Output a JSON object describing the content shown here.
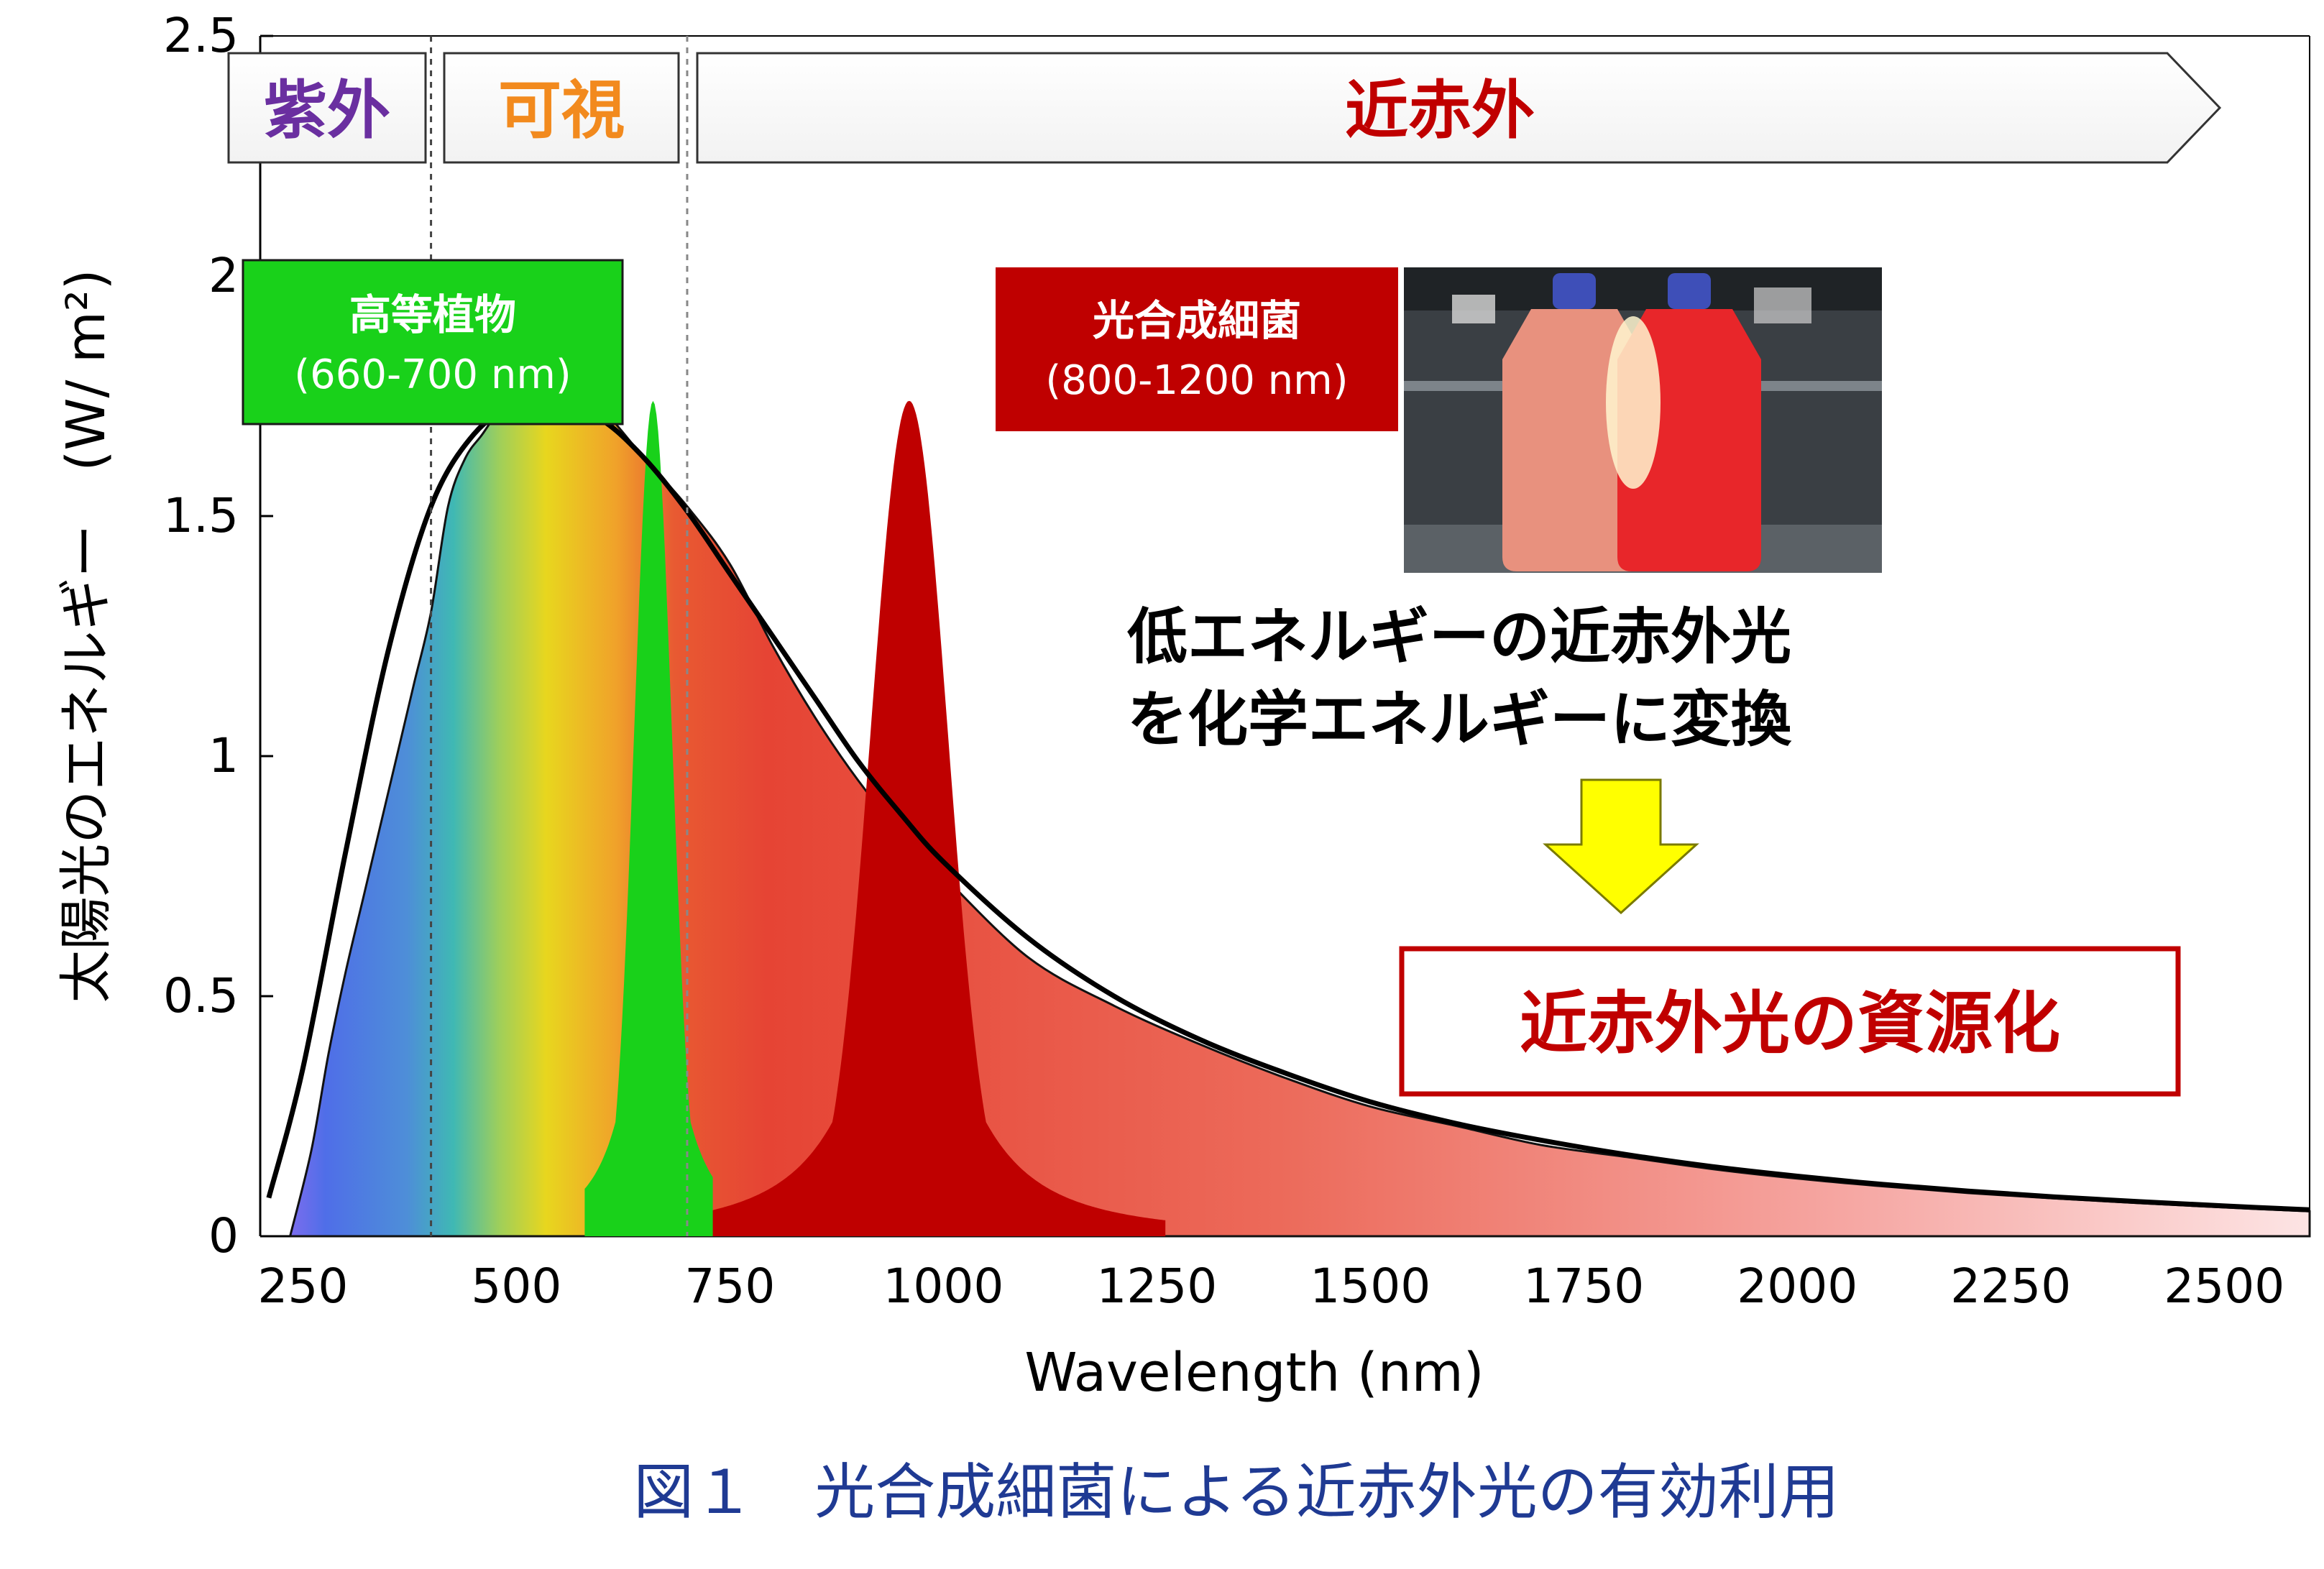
{
  "chart_data": {
    "type": "area",
    "xlabel": "Wavelength (nm)",
    "ylabel": "太陽光のエネルギー　(W/ m²)",
    "xlim": [
      200,
      2600
    ],
    "ylim": [
      0,
      2.5
    ],
    "x_ticks": [
      "250",
      "500",
      "750",
      "1000",
      "1250",
      "1500",
      "1750",
      "2000",
      "2250",
      "2500"
    ],
    "x_tick_values": [
      250,
      500,
      750,
      1000,
      1250,
      1500,
      1750,
      2000,
      2250,
      2500
    ],
    "y_ticks": [
      "0",
      "0.5",
      "1",
      "1.5",
      "2",
      "2.5"
    ],
    "y_tick_values": [
      0,
      0.5,
      1,
      1.5,
      2,
      2.5
    ],
    "series": [
      {
        "kind": "envelope",
        "x": [
          210,
          250,
          300,
          350,
          400,
          450,
          500,
          550,
          600,
          650,
          700,
          750,
          800,
          850,
          900,
          950,
          1000,
          1100,
          1200,
          1300,
          1400,
          1500,
          1600,
          1700,
          1800,
          1900,
          2000,
          2100,
          2200,
          2300,
          2400,
          2500,
          2600
        ],
        "y": [
          0.08,
          0.35,
          0.8,
          1.22,
          1.52,
          1.67,
          1.73,
          1.73,
          1.7,
          1.62,
          1.51,
          1.38,
          1.25,
          1.12,
          0.99,
          0.88,
          0.78,
          0.62,
          0.5,
          0.41,
          0.34,
          0.28,
          0.235,
          0.2,
          0.17,
          0.145,
          0.125,
          0.108,
          0.094,
          0.082,
          0.072,
          0.063,
          0.055
        ]
      },
      {
        "kind": "solar-spectrum-fill",
        "x": [
          235,
          260,
          280,
          300,
          320,
          340,
          360,
          380,
          400,
          420,
          440,
          460,
          480,
          500,
          550,
          600,
          650,
          700,
          750,
          800,
          850,
          900,
          950,
          1000,
          1100,
          1200,
          1300,
          1400,
          1500,
          1600,
          1700,
          1800,
          1900,
          2000,
          2100,
          2200,
          2300,
          2400,
          2500,
          2600
        ],
        "y": [
          0.0,
          0.18,
          0.38,
          0.55,
          0.7,
          0.85,
          1.0,
          1.15,
          1.3,
          1.52,
          1.62,
          1.67,
          1.72,
          1.75,
          1.76,
          1.72,
          1.62,
          1.52,
          1.4,
          1.23,
          1.08,
          0.95,
          0.84,
          0.75,
          0.58,
          0.48,
          0.4,
          0.33,
          0.27,
          0.23,
          0.19,
          0.165,
          0.14,
          0.12,
          0.104,
          0.09,
          0.079,
          0.069,
          0.06,
          0.052
        ]
      },
      {
        "kind": "higher-plants-absorption",
        "peak_x": 660,
        "peak_y": 1.74,
        "sigma_nm": 22
      },
      {
        "kind": "photosynthetic-bacteria-absorption",
        "peak_x": 960,
        "peak_y": 1.74,
        "sigma_nm": 45
      }
    ],
    "region_boundaries": [
      400,
      700
    ],
    "regions": [
      {
        "label": "紫外",
        "color": "#6a2fa0"
      },
      {
        "label": "可視",
        "color": "#f28a1e"
      },
      {
        "label": "近赤外",
        "color": "#c00000"
      }
    ],
    "annotations": {
      "plants_box_title": "高等植物",
      "plants_box_range": "(660-700 nm)",
      "bacteria_box_title": "光合成細菌",
      "bacteria_box_range": "(800-1200 nm)",
      "conversion_line1": "低エネルギーの近赤外光",
      "conversion_line2": "を化学エネルギーに変換",
      "result": "近赤外光の資源化"
    },
    "colors": {
      "plants_green": "#19d11a",
      "bacteria_red": "#bf0000",
      "arrow_yellow": "#ffff00"
    }
  },
  "caption": "図１　光合成細菌による近赤外光の有効利用"
}
